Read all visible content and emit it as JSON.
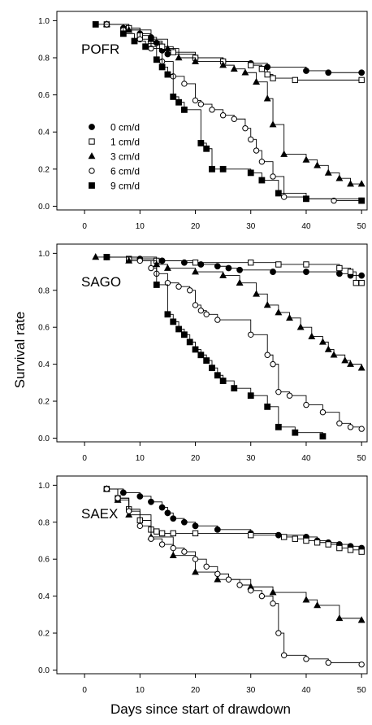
{
  "figure": {
    "ylabel": "Survival rate",
    "xlabel": "Days since start of drawdown"
  },
  "legend": {
    "entries": [
      {
        "label": "0 cm/d",
        "marker": "filled-circle"
      },
      {
        "label": "1 cm/d",
        "marker": "open-square"
      },
      {
        "label": "3 cm/d",
        "marker": "filled-triangle"
      },
      {
        "label": "6 cm/d",
        "marker": "open-circle"
      },
      {
        "label": "9 cm/d",
        "marker": "filled-square"
      }
    ]
  },
  "chart_data": [
    {
      "type": "line",
      "step": true,
      "title": "POFR",
      "xlim": [
        -5,
        51
      ],
      "ylim": [
        -0.02,
        1.05
      ],
      "xticks": [
        0,
        10,
        20,
        30,
        40,
        50
      ],
      "yticks": [
        0.0,
        0.2,
        0.4,
        0.6,
        0.8,
        1.0
      ],
      "series": [
        {
          "name": "0 cm/d",
          "marker": "filled-circle",
          "x": [
            4,
            7,
            10,
            12,
            13,
            14,
            15,
            20,
            25,
            30,
            33,
            40,
            44,
            50
          ],
          "y": [
            0.98,
            0.96,
            0.93,
            0.91,
            0.88,
            0.84,
            0.82,
            0.8,
            0.78,
            0.77,
            0.75,
            0.73,
            0.72,
            0.72
          ]
        },
        {
          "name": "1 cm/d",
          "marker": "open-square",
          "x": [
            4,
            8,
            10,
            12,
            14,
            16,
            20,
            25,
            30,
            32,
            33,
            34,
            38,
            50
          ],
          "y": [
            0.98,
            0.96,
            0.92,
            0.89,
            0.86,
            0.83,
            0.8,
            0.78,
            0.76,
            0.74,
            0.71,
            0.69,
            0.68,
            0.68
          ]
        },
        {
          "name": "3 cm/d",
          "marker": "filled-triangle",
          "x": [
            4,
            8,
            12,
            15,
            17,
            20,
            25,
            27,
            29,
            31,
            33,
            34,
            36,
            40,
            42,
            44,
            46,
            48,
            50
          ],
          "y": [
            0.98,
            0.95,
            0.9,
            0.85,
            0.8,
            0.78,
            0.76,
            0.74,
            0.72,
            0.67,
            0.58,
            0.44,
            0.28,
            0.25,
            0.22,
            0.18,
            0.15,
            0.12,
            0.12
          ]
        },
        {
          "name": "6 cm/d",
          "marker": "open-circle",
          "x": [
            4,
            7,
            10,
            12,
            14,
            16,
            18,
            20,
            21,
            23,
            25,
            27,
            29,
            30,
            31,
            32,
            34,
            36,
            40,
            45,
            50
          ],
          "y": [
            0.98,
            0.95,
            0.9,
            0.85,
            0.78,
            0.7,
            0.66,
            0.57,
            0.55,
            0.52,
            0.49,
            0.47,
            0.42,
            0.36,
            0.3,
            0.24,
            0.16,
            0.05,
            0.04,
            0.03,
            0.03
          ]
        },
        {
          "name": "9 cm/d",
          "marker": "filled-square",
          "x": [
            2,
            7,
            9,
            11,
            13,
            14,
            15,
            16,
            17,
            18,
            21,
            22,
            23,
            25,
            30,
            32,
            35,
            40,
            50
          ],
          "y": [
            0.98,
            0.93,
            0.89,
            0.86,
            0.79,
            0.75,
            0.71,
            0.59,
            0.56,
            0.52,
            0.34,
            0.31,
            0.2,
            0.2,
            0.18,
            0.14,
            0.07,
            0.04,
            0.03
          ]
        }
      ]
    },
    {
      "type": "line",
      "step": true,
      "title": "SAGO",
      "xlim": [
        -5,
        51
      ],
      "ylim": [
        -0.02,
        1.05
      ],
      "xticks": [
        0,
        10,
        20,
        30,
        40,
        50
      ],
      "yticks": [
        0.0,
        0.2,
        0.4,
        0.6,
        0.8,
        1.0
      ],
      "series": [
        {
          "name": "0 cm/d",
          "marker": "filled-circle",
          "x": [
            4,
            10,
            14,
            18,
            21,
            24,
            26,
            28,
            34,
            40,
            46,
            48,
            50
          ],
          "y": [
            0.98,
            0.97,
            0.96,
            0.95,
            0.94,
            0.93,
            0.92,
            0.91,
            0.9,
            0.9,
            0.89,
            0.88,
            0.88
          ]
        },
        {
          "name": "1 cm/d",
          "marker": "open-square",
          "x": [
            4,
            8,
            13,
            20,
            30,
            35,
            40,
            46,
            48,
            49,
            50
          ],
          "y": [
            0.98,
            0.97,
            0.96,
            0.95,
            0.95,
            0.94,
            0.94,
            0.92,
            0.9,
            0.84,
            0.84
          ]
        },
        {
          "name": "3 cm/d",
          "marker": "filled-triangle",
          "x": [
            2,
            8,
            13,
            15,
            20,
            25,
            28,
            31,
            33,
            35,
            37,
            39,
            41,
            43,
            44,
            45,
            47,
            48,
            50
          ],
          "y": [
            0.98,
            0.96,
            0.94,
            0.92,
            0.9,
            0.88,
            0.84,
            0.78,
            0.72,
            0.68,
            0.65,
            0.6,
            0.55,
            0.52,
            0.48,
            0.45,
            0.42,
            0.4,
            0.38
          ]
        },
        {
          "name": "6 cm/d",
          "marker": "open-circle",
          "x": [
            4,
            10,
            12,
            13,
            15,
            17,
            19,
            20,
            21,
            22,
            24,
            30,
            33,
            34,
            35,
            37,
            40,
            43,
            46,
            48,
            50
          ],
          "y": [
            0.98,
            0.96,
            0.92,
            0.89,
            0.84,
            0.82,
            0.8,
            0.72,
            0.69,
            0.67,
            0.64,
            0.56,
            0.45,
            0.4,
            0.25,
            0.23,
            0.18,
            0.14,
            0.08,
            0.06,
            0.05
          ]
        },
        {
          "name": "9 cm/d",
          "marker": "filled-square",
          "x": [
            4,
            13,
            15,
            16,
            17,
            18,
            19,
            20,
            21,
            22,
            23,
            24,
            25,
            27,
            30,
            33,
            35,
            38,
            43
          ],
          "y": [
            0.98,
            0.83,
            0.67,
            0.63,
            0.59,
            0.56,
            0.52,
            0.48,
            0.45,
            0.42,
            0.38,
            0.34,
            0.31,
            0.27,
            0.23,
            0.17,
            0.06,
            0.03,
            0.01
          ]
        }
      ]
    },
    {
      "type": "line",
      "step": true,
      "title": "SAEX",
      "xlim": [
        -5,
        51
      ],
      "ylim": [
        -0.02,
        1.05
      ],
      "xticks": [
        0,
        10,
        20,
        30,
        40,
        50
      ],
      "yticks": [
        0.0,
        0.2,
        0.4,
        0.6,
        0.8,
        1.0
      ],
      "series": [
        {
          "name": "0 cm/d",
          "marker": "filled-circle",
          "x": [
            4,
            7,
            10,
            12,
            14,
            15,
            16,
            18,
            20,
            24,
            30,
            35,
            40,
            42,
            44,
            46,
            48,
            50
          ],
          "y": [
            0.98,
            0.96,
            0.94,
            0.91,
            0.88,
            0.85,
            0.82,
            0.8,
            0.78,
            0.76,
            0.74,
            0.73,
            0.72,
            0.7,
            0.69,
            0.68,
            0.67,
            0.66
          ]
        },
        {
          "name": "1 cm/d",
          "marker": "open-square",
          "x": [
            4,
            6,
            8,
            10,
            12,
            13,
            14,
            16,
            20,
            30,
            36,
            38,
            40,
            42,
            44,
            46,
            48,
            50
          ],
          "y": [
            0.98,
            0.93,
            0.87,
            0.81,
            0.76,
            0.75,
            0.74,
            0.74,
            0.74,
            0.73,
            0.72,
            0.71,
            0.7,
            0.69,
            0.68,
            0.66,
            0.65,
            0.64
          ]
        },
        {
          "name": "3 cm/d",
          "marker": "filled-triangle",
          "x": [
            4,
            6,
            8,
            12,
            16,
            20,
            24,
            30,
            34,
            40,
            42,
            46,
            50
          ],
          "y": [
            0.98,
            0.92,
            0.84,
            0.72,
            0.62,
            0.53,
            0.49,
            0.45,
            0.42,
            0.38,
            0.35,
            0.28,
            0.27
          ]
        },
        {
          "name": "6 cm/d",
          "marker": "open-circle",
          "x": [
            4,
            6,
            8,
            10,
            12,
            14,
            16,
            18,
            20,
            22,
            24,
            26,
            28,
            30,
            32,
            34,
            35,
            36,
            40,
            44,
            50
          ],
          "y": [
            0.98,
            0.93,
            0.86,
            0.78,
            0.71,
            0.68,
            0.66,
            0.64,
            0.6,
            0.56,
            0.52,
            0.49,
            0.46,
            0.43,
            0.4,
            0.36,
            0.2,
            0.08,
            0.06,
            0.04,
            0.03
          ]
        }
      ]
    }
  ]
}
